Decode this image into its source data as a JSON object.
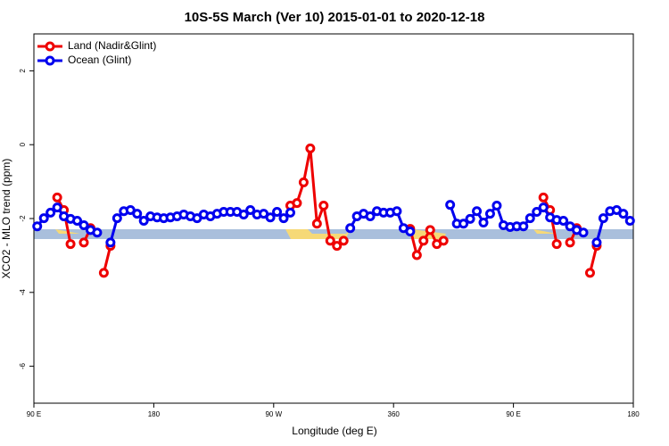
{
  "chart_data": {
    "type": "line",
    "title": "10S-5S March (Ver 10)   2015-01-01 to 2020-12-18",
    "xlabel": "Longitude (deg E)",
    "ylabel": "XCO2 - MLO trend (ppm)",
    "xlim": [
      90,
      540
    ],
    "ylim": [
      -7,
      3
    ],
    "xticks": [
      {
        "value": 90,
        "label": "90 E"
      },
      180,
      {
        "value": 270,
        "label": "90 W"
      },
      360,
      {
        "value": 450,
        "label": "90 E"
      },
      {
        "value": 540,
        "label": "180"
      }
    ],
    "yticks": [
      2,
      0,
      -2,
      -4,
      -6
    ],
    "legend": "top-left",
    "x": [
      92.5,
      97.5,
      102.5,
      107.5,
      112.5,
      117.5,
      122.5,
      127.5,
      132.5,
      137.5,
      142.5,
      147.5,
      152.5,
      157.5,
      162.5,
      167.5,
      172.5,
      177.5,
      182.5,
      187.5,
      192.5,
      197.5,
      202.5,
      207.5,
      212.5,
      217.5,
      222.5,
      227.5,
      232.5,
      237.5,
      242.5,
      247.5,
      252.5,
      257.5,
      262.5,
      267.5,
      272.5,
      277.5,
      282.5,
      287.5,
      292.5,
      297.5,
      302.5,
      307.5,
      312.5,
      317.5,
      322.5,
      327.5,
      332.5,
      337.5,
      342.5,
      347.5,
      352.5,
      357.5,
      362.5,
      367.5,
      372.5,
      377.5,
      382.5,
      387.5,
      392.5,
      397.5,
      402.5,
      407.5,
      412.5,
      417.5,
      422.5,
      427.5,
      432.5,
      437.5,
      442.5,
      447.5,
      452.5,
      457.5,
      462.5,
      467.5,
      472.5,
      477.5,
      482.5,
      487.5,
      492.5,
      497.5,
      502.5,
      507.5,
      512.5,
      517.5,
      522.5,
      527.5,
      532.5,
      537.5
    ],
    "series": [
      {
        "name": "Land (Nadir&Glint)",
        "color": "#ee0000",
        "values": [
          null,
          null,
          null,
          -1.43,
          -1.77,
          -2.69,
          null,
          -2.65,
          -2.26,
          null,
          -3.47,
          -2.74,
          null,
          null,
          null,
          null,
          null,
          null,
          null,
          null,
          null,
          null,
          null,
          null,
          null,
          null,
          null,
          null,
          null,
          null,
          null,
          null,
          null,
          null,
          null,
          null,
          null,
          null,
          -1.65,
          -1.58,
          -1.02,
          -0.1,
          -2.14,
          -1.65,
          -2.6,
          -2.74,
          -2.6,
          null,
          null,
          null,
          null,
          null,
          null,
          null,
          null,
          null,
          -2.28,
          -2.99,
          -2.6,
          -2.31,
          -2.69,
          -2.6,
          null,
          null,
          null,
          null,
          null,
          null,
          null,
          null,
          null,
          null,
          null,
          null,
          null,
          null,
          -1.43,
          -1.77,
          -2.69,
          null,
          -2.65,
          -2.26,
          null,
          -3.47,
          -2.74,
          null,
          null,
          null,
          null,
          null
        ]
      },
      {
        "name": "Ocean (Glint)",
        "color": "#0000ee",
        "values": [
          -2.21,
          -1.99,
          -1.84,
          -1.7,
          -1.94,
          -2.01,
          -2.06,
          -2.18,
          -2.31,
          -2.38,
          null,
          -2.65,
          -1.99,
          -1.8,
          -1.77,
          -1.87,
          -2.06,
          -1.94,
          -1.97,
          -1.99,
          -1.97,
          -1.94,
          -1.89,
          -1.94,
          -1.99,
          -1.89,
          -1.94,
          -1.87,
          -1.82,
          -1.82,
          -1.82,
          -1.89,
          -1.77,
          -1.89,
          -1.87,
          -1.97,
          -1.82,
          -1.99,
          -1.84,
          null,
          null,
          null,
          null,
          null,
          null,
          null,
          null,
          -2.26,
          -1.94,
          -1.87,
          -1.94,
          -1.8,
          -1.84,
          -1.84,
          -1.8,
          -2.26,
          -2.35,
          null,
          null,
          null,
          null,
          null,
          -1.63,
          -2.14,
          -2.14,
          -2.01,
          -1.8,
          -2.11,
          -1.87,
          -1.65,
          -2.18,
          -2.23,
          -2.21,
          -2.21,
          -1.99,
          -1.82,
          -1.7,
          -1.97,
          -2.04,
          -2.06,
          -2.21,
          -2.31,
          -2.38,
          null,
          -2.65,
          -1.99,
          -1.8,
          -1.77,
          -1.87,
          -2.06
        ]
      }
    ]
  }
}
